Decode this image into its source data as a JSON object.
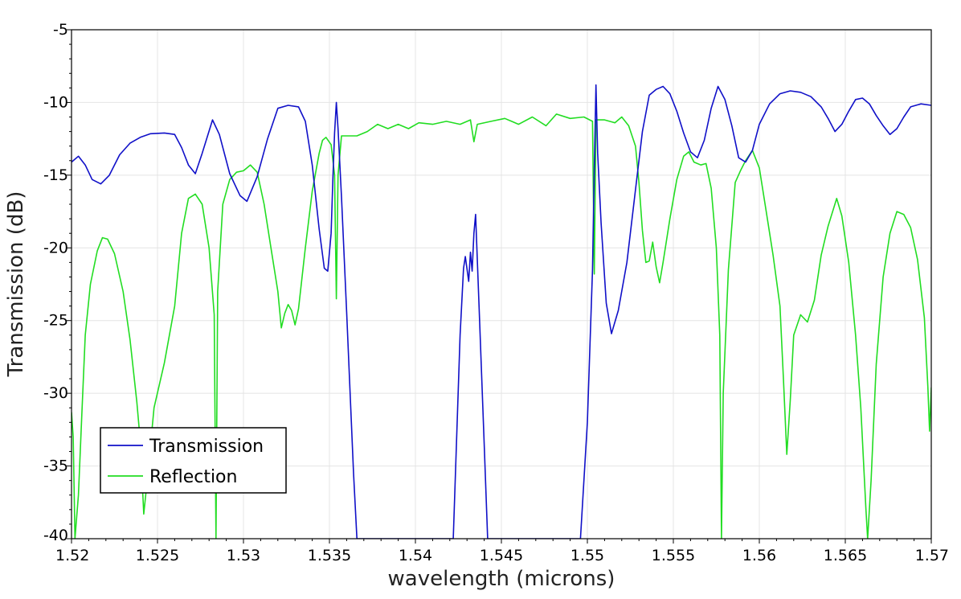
{
  "chart_data": {
    "type": "line",
    "title": "",
    "xlabel": "wavelength (microns)",
    "ylabel": "Transmission (dB)",
    "xlim": [
      1.52,
      1.57
    ],
    "ylim": [
      -40,
      -5
    ],
    "xticks": [
      "1.52",
      "1.525",
      "1.53",
      "1.535",
      "1.54",
      "1.545",
      "1.55",
      "1.555",
      "1.56",
      "1.565",
      "1.57"
    ],
    "yticks": [
      "-5",
      "-10",
      "-15",
      "-20",
      "-25",
      "-30",
      "-35",
      "-40"
    ],
    "grid": true,
    "legend_position": "bottom-left",
    "series": [
      {
        "name": "Transmission",
        "color": "#1010c8",
        "points": [
          [
            1.52,
            -14.1
          ],
          [
            1.5204,
            -13.7
          ],
          [
            1.5208,
            -14.3
          ],
          [
            1.5212,
            -15.3
          ],
          [
            1.5217,
            -15.6
          ],
          [
            1.5222,
            -15.0
          ],
          [
            1.5228,
            -13.6
          ],
          [
            1.5234,
            -12.8
          ],
          [
            1.524,
            -12.4
          ],
          [
            1.5246,
            -12.15
          ],
          [
            1.5254,
            -12.1
          ],
          [
            1.526,
            -12.2
          ],
          [
            1.5264,
            -13.1
          ],
          [
            1.5268,
            -14.3
          ],
          [
            1.5272,
            -14.9
          ],
          [
            1.5276,
            -13.5
          ],
          [
            1.5282,
            -11.2
          ],
          [
            1.5286,
            -12.2
          ],
          [
            1.5292,
            -14.9
          ],
          [
            1.5298,
            -16.4
          ],
          [
            1.5302,
            -16.8
          ],
          [
            1.5308,
            -15.1
          ],
          [
            1.5314,
            -12.5
          ],
          [
            1.532,
            -10.4
          ],
          [
            1.5326,
            -10.2
          ],
          [
            1.5332,
            -10.3
          ],
          [
            1.5336,
            -11.3
          ],
          [
            1.534,
            -14.3
          ],
          [
            1.5344,
            -18.7
          ],
          [
            1.5347,
            -21.4
          ],
          [
            1.5349,
            -21.6
          ],
          [
            1.5351,
            -19.0
          ],
          [
            1.5352,
            -15.2
          ],
          [
            1.5353,
            -12.1
          ],
          [
            1.5354,
            -10.0
          ],
          [
            1.5355,
            -11.8
          ],
          [
            1.5357,
            -16.5
          ],
          [
            1.536,
            -24.4
          ],
          [
            1.5364,
            -35.5
          ],
          [
            1.5366,
            -40
          ],
          [
            1.5422,
            -40
          ],
          [
            1.5426,
            -26.0
          ],
          [
            1.5428,
            -21.4
          ],
          [
            1.5429,
            -20.6
          ],
          [
            1.5431,
            -22.3
          ],
          [
            1.5432,
            -20.3
          ],
          [
            1.5433,
            -21.6
          ],
          [
            1.5434,
            -19.0
          ],
          [
            1.5435,
            -17.7
          ],
          [
            1.5437,
            -24.0
          ],
          [
            1.544,
            -33.5
          ],
          [
            1.5442,
            -40
          ],
          [
            1.5496,
            -40
          ],
          [
            1.55,
            -32.0
          ],
          [
            1.5503,
            -21.5
          ],
          [
            1.5504,
            -14.6
          ],
          [
            1.5505,
            -8.8
          ],
          [
            1.5506,
            -13.5
          ],
          [
            1.5508,
            -18.3
          ],
          [
            1.5511,
            -23.8
          ],
          [
            1.5514,
            -25.9
          ],
          [
            1.5518,
            -24.3
          ],
          [
            1.5523,
            -21.0
          ],
          [
            1.5528,
            -16.0
          ],
          [
            1.5532,
            -12.0
          ],
          [
            1.5536,
            -9.5
          ],
          [
            1.554,
            -9.1
          ],
          [
            1.5544,
            -8.9
          ],
          [
            1.5548,
            -9.4
          ],
          [
            1.5552,
            -10.6
          ],
          [
            1.5556,
            -12.1
          ],
          [
            1.556,
            -13.4
          ],
          [
            1.5564,
            -13.8
          ],
          [
            1.5568,
            -12.6
          ],
          [
            1.5572,
            -10.4
          ],
          [
            1.5576,
            -8.9
          ],
          [
            1.558,
            -9.8
          ],
          [
            1.5584,
            -11.6
          ],
          [
            1.5588,
            -13.8
          ],
          [
            1.5592,
            -14.1
          ],
          [
            1.5596,
            -13.3
          ],
          [
            1.56,
            -11.5
          ],
          [
            1.5606,
            -10.1
          ],
          [
            1.5612,
            -9.4
          ],
          [
            1.5618,
            -9.2
          ],
          [
            1.5624,
            -9.3
          ],
          [
            1.563,
            -9.6
          ],
          [
            1.5636,
            -10.3
          ],
          [
            1.564,
            -11.1
          ],
          [
            1.5644,
            -12.0
          ],
          [
            1.5648,
            -11.5
          ],
          [
            1.5652,
            -10.6
          ],
          [
            1.5656,
            -9.8
          ],
          [
            1.566,
            -9.7
          ],
          [
            1.5664,
            -10.1
          ],
          [
            1.5668,
            -10.9
          ],
          [
            1.5672,
            -11.6
          ],
          [
            1.5676,
            -12.2
          ],
          [
            1.568,
            -11.8
          ],
          [
            1.5684,
            -11.0
          ],
          [
            1.5688,
            -10.3
          ],
          [
            1.5694,
            -10.1
          ],
          [
            1.57,
            -10.2
          ]
        ]
      },
      {
        "name": "Reflection",
        "color": "#22dd22",
        "points": [
          [
            1.52,
            -31.3
          ],
          [
            1.5201,
            -33.0
          ],
          [
            1.5202,
            -40
          ],
          [
            1.5204,
            -37.0
          ],
          [
            1.5206,
            -31.5
          ],
          [
            1.5208,
            -26.0
          ],
          [
            1.5211,
            -22.5
          ],
          [
            1.5215,
            -20.2
          ],
          [
            1.5218,
            -19.3
          ],
          [
            1.5221,
            -19.4
          ],
          [
            1.5225,
            -20.4
          ],
          [
            1.523,
            -23.0
          ],
          [
            1.5234,
            -26.3
          ],
          [
            1.5238,
            -30.6
          ],
          [
            1.524,
            -33.3
          ],
          [
            1.5242,
            -38.3
          ],
          [
            1.5244,
            -36.0
          ],
          [
            1.5248,
            -31.0
          ],
          [
            1.5254,
            -27.9
          ],
          [
            1.526,
            -24.0
          ],
          [
            1.5264,
            -19.0
          ],
          [
            1.5268,
            -16.6
          ],
          [
            1.5272,
            -16.3
          ],
          [
            1.5276,
            -17.0
          ],
          [
            1.528,
            -20.0
          ],
          [
            1.5283,
            -24.6
          ],
          [
            1.5284,
            -40
          ],
          [
            1.5285,
            -23.0
          ],
          [
            1.5288,
            -17.0
          ],
          [
            1.5292,
            -15.3
          ],
          [
            1.5296,
            -14.8
          ],
          [
            1.53,
            -14.7
          ],
          [
            1.5304,
            -14.3
          ],
          [
            1.5308,
            -14.8
          ],
          [
            1.5312,
            -17.0
          ],
          [
            1.5316,
            -20.0
          ],
          [
            1.532,
            -23.0
          ],
          [
            1.5322,
            -25.5
          ],
          [
            1.5324,
            -24.5
          ],
          [
            1.5326,
            -23.9
          ],
          [
            1.5328,
            -24.3
          ],
          [
            1.533,
            -25.3
          ],
          [
            1.5332,
            -24.2
          ],
          [
            1.5336,
            -20.0
          ],
          [
            1.534,
            -16.1
          ],
          [
            1.5344,
            -13.5
          ],
          [
            1.5346,
            -12.6
          ],
          [
            1.5348,
            -12.4
          ],
          [
            1.5351,
            -12.9
          ],
          [
            1.5353,
            -15.0
          ],
          [
            1.5354,
            -23.5
          ],
          [
            1.5355,
            -15.0
          ],
          [
            1.5357,
            -12.3
          ],
          [
            1.536,
            -12.3
          ],
          [
            1.5366,
            -12.3
          ],
          [
            1.5372,
            -12.0
          ],
          [
            1.5378,
            -11.5
          ],
          [
            1.5384,
            -11.8
          ],
          [
            1.539,
            -11.5
          ],
          [
            1.5396,
            -11.8
          ],
          [
            1.5402,
            -11.4
          ],
          [
            1.541,
            -11.5
          ],
          [
            1.5418,
            -11.3
          ],
          [
            1.5426,
            -11.5
          ],
          [
            1.5432,
            -11.2
          ],
          [
            1.5434,
            -12.7
          ],
          [
            1.5436,
            -11.5
          ],
          [
            1.5444,
            -11.3
          ],
          [
            1.5452,
            -11.1
          ],
          [
            1.546,
            -11.5
          ],
          [
            1.5468,
            -11.0
          ],
          [
            1.5476,
            -11.6
          ],
          [
            1.5482,
            -10.8
          ],
          [
            1.549,
            -11.1
          ],
          [
            1.5498,
            -11.0
          ],
          [
            1.5503,
            -11.3
          ],
          [
            1.5504,
            -21.8
          ],
          [
            1.5505,
            -11.2
          ],
          [
            1.551,
            -11.2
          ],
          [
            1.5516,
            -11.4
          ],
          [
            1.552,
            -11.0
          ],
          [
            1.5524,
            -11.6
          ],
          [
            1.5528,
            -13.0
          ],
          [
            1.553,
            -15.5
          ],
          [
            1.5532,
            -18.8
          ],
          [
            1.5534,
            -21.0
          ],
          [
            1.5536,
            -20.9
          ],
          [
            1.5538,
            -19.6
          ],
          [
            1.554,
            -21.3
          ],
          [
            1.5542,
            -22.4
          ],
          [
            1.5544,
            -21.0
          ],
          [
            1.5548,
            -18.0
          ],
          [
            1.5552,
            -15.3
          ],
          [
            1.5556,
            -13.7
          ],
          [
            1.5559,
            -13.4
          ],
          [
            1.5562,
            -14.1
          ],
          [
            1.5566,
            -14.3
          ],
          [
            1.5569,
            -14.2
          ],
          [
            1.5572,
            -15.9
          ],
          [
            1.5575,
            -20.0
          ],
          [
            1.5577,
            -26.0
          ],
          [
            1.5578,
            -40
          ],
          [
            1.5579,
            -30.0
          ],
          [
            1.5582,
            -21.5
          ],
          [
            1.5586,
            -15.5
          ],
          [
            1.5589,
            -14.7
          ],
          [
            1.5592,
            -14.0
          ],
          [
            1.5596,
            -13.3
          ],
          [
            1.56,
            -14.5
          ],
          [
            1.5604,
            -17.5
          ],
          [
            1.5608,
            -20.5
          ],
          [
            1.5612,
            -24.0
          ],
          [
            1.5614,
            -29.0
          ],
          [
            1.5616,
            -34.2
          ],
          [
            1.5618,
            -30.5
          ],
          [
            1.562,
            -26.0
          ],
          [
            1.5624,
            -24.6
          ],
          [
            1.5628,
            -25.1
          ],
          [
            1.5632,
            -23.6
          ],
          [
            1.5636,
            -20.5
          ],
          [
            1.564,
            -18.5
          ],
          [
            1.5645,
            -16.6
          ],
          [
            1.5648,
            -17.8
          ],
          [
            1.5652,
            -21.0
          ],
          [
            1.5656,
            -26.0
          ],
          [
            1.5659,
            -31.0
          ],
          [
            1.5662,
            -38.0
          ],
          [
            1.5663,
            -40
          ],
          [
            1.5665,
            -36.0
          ],
          [
            1.5668,
            -28.0
          ],
          [
            1.5672,
            -22.0
          ],
          [
            1.5676,
            -19.0
          ],
          [
            1.568,
            -17.5
          ],
          [
            1.5684,
            -17.7
          ],
          [
            1.5688,
            -18.6
          ],
          [
            1.5692,
            -20.8
          ],
          [
            1.5696,
            -24.8
          ],
          [
            1.5698,
            -29.5
          ],
          [
            1.5699,
            -32.6
          ],
          [
            1.57,
            -29.6
          ]
        ]
      }
    ]
  }
}
